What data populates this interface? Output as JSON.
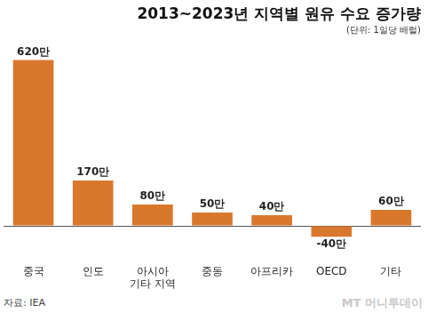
{
  "chart_data": {
    "type": "bar",
    "title": "2013~2023년 지역별 원유 수요 증가량",
    "subtitle": "(단위: 1일당 배럴)",
    "annotations": [
      "자료: IEA",
      "MT 머니투데이"
    ],
    "categories": [
      "중국",
      "인도",
      "아시아\n기타 지역",
      "중동",
      "아프리카",
      "OECD",
      "기타"
    ],
    "values": [
      620,
      170,
      80,
      50,
      40,
      -40,
      60
    ],
    "value_labels": [
      "620만",
      "170만",
      "80만",
      "50만",
      "40만",
      "-40만",
      "60만"
    ],
    "data_labels": true,
    "color": "#d9782d",
    "ylim": [
      -110,
      690
    ],
    "yticks": [
      0
    ],
    "grid": true,
    "tick_labels": "x"
  }
}
